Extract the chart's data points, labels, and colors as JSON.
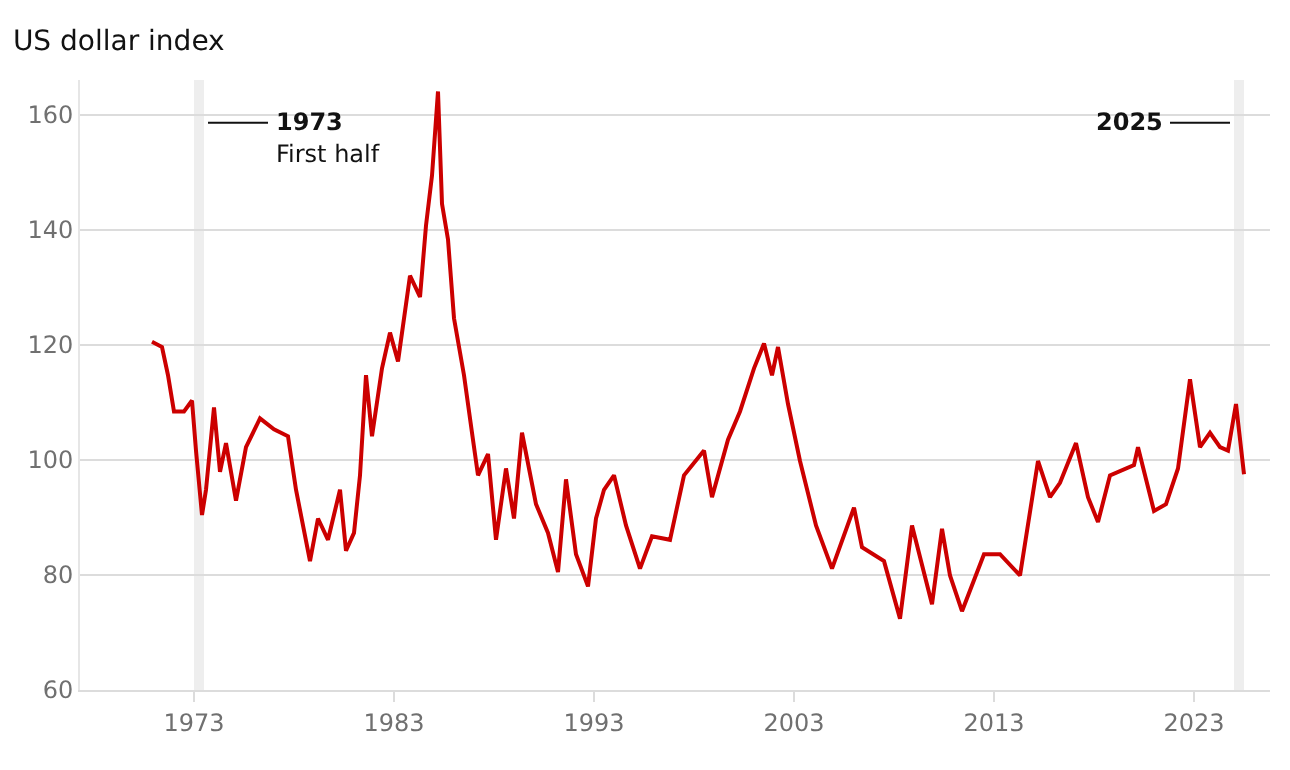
{
  "chart_data": {
    "type": "line",
    "title": "US dollar index",
    "x": [
      1970.9,
      1971.4,
      1971.7,
      1972.0,
      1972.5,
      1972.9,
      1973.1,
      1973.4,
      1973.6,
      1974.0,
      1974.3,
      1974.6,
      1975.1,
      1975.6,
      1976.3,
      1977.0,
      1977.7,
      1978.1,
      1978.8,
      1979.2,
      1979.7,
      1980.3,
      1980.6,
      1981.0,
      1981.3,
      1981.6,
      1981.9,
      1982.4,
      1982.8,
      1983.2,
      1983.8,
      1984.3,
      1984.6,
      1984.9,
      1985.2,
      1985.4,
      1985.7,
      1986.0,
      1986.5,
      1986.9,
      1987.2,
      1987.7,
      1988.1,
      1988.6,
      1989.0,
      1989.4,
      1990.1,
      1990.7,
      1991.2,
      1991.6,
      1992.1,
      1992.7,
      1993.1,
      1993.5,
      1994.0,
      1994.6,
      1995.3,
      1995.9,
      1996.8,
      1997.5,
      1998.5,
      1998.9,
      1999.7,
      2000.3,
      2001.0,
      2001.5,
      2001.9,
      2002.2,
      2002.7,
      2003.3,
      2004.1,
      2004.9,
      2006.0,
      2006.4,
      2007.5,
      2008.3,
      2008.9,
      2009.9,
      2010.4,
      2010.8,
      2011.4,
      2012.5,
      2013.3,
      2014.3,
      2015.2,
      2015.8,
      2016.3,
      2017.1,
      2017.7,
      2018.2,
      2018.8,
      2020.0,
      2020.2,
      2021.0,
      2021.6,
      2022.2,
      2022.8,
      2023.3,
      2023.8,
      2024.3,
      2024.7,
      2025.1,
      2025.5
    ],
    "series": [
      {
        "color": "#cc0000",
        "values": [
          120.5,
          119.6,
          114.7,
          108.4,
          108.4,
          110.3,
          101.6,
          90.4,
          94.8,
          109.1,
          97.9,
          102.9,
          92.9,
          102.2,
          107.2,
          105.3,
          104.1,
          94.8,
          82.4,
          89.8,
          86.1,
          94.8,
          84.2,
          87.3,
          97.3,
          114.7,
          104.1,
          115.9,
          122.1,
          117.1,
          132.0,
          128.3,
          140.7,
          149.4,
          164,
          144.5,
          138.3,
          124.6,
          114.7,
          104.7,
          97.3,
          101.0,
          86.1,
          98.5,
          89.8,
          104.7,
          92.3,
          87.3,
          80.5,
          96.6,
          83.6,
          78.0,
          89.8,
          94.8,
          97.3,
          88.6,
          81.1,
          86.7,
          86.1,
          97.3,
          101.6,
          93.5,
          103.5,
          108.4,
          115.9,
          120.2,
          114.7,
          119.6,
          109.7,
          99.8,
          88.6,
          81.1,
          91.7,
          84.8,
          82.4,
          72.4,
          88.6,
          74.9,
          88.0,
          79.9,
          73.7,
          83.6,
          83.6,
          79.9,
          99.8,
          93.5,
          96.0,
          102.9,
          93.5,
          89.2,
          97.3,
          99.1,
          102.2,
          91.1,
          92.3,
          98.5,
          114.0,
          102.2,
          104.7,
          102.2,
          101.6,
          109.7,
          97.5
        ]
      }
    ],
    "xlim": [
      1967.3,
      2026.8
    ],
    "xticks": [
      1973,
      1983,
      1993,
      2003,
      2013,
      2023
    ],
    "ylim": [
      60,
      166
    ],
    "yticks": [
      60,
      80,
      100,
      120,
      140,
      160
    ],
    "grid": "y",
    "bands": [
      {
        "axis": "x",
        "from": 1973.0,
        "to": 1973.5,
        "label": "1973",
        "color": "#eeeeee"
      },
      {
        "axis": "x",
        "from": 2025.0,
        "to": 2025.5,
        "label": "2025",
        "color": "#eeeeee"
      }
    ],
    "annotations": [
      {
        "text": "First half",
        "x": 1973.5,
        "y": 153
      }
    ]
  }
}
